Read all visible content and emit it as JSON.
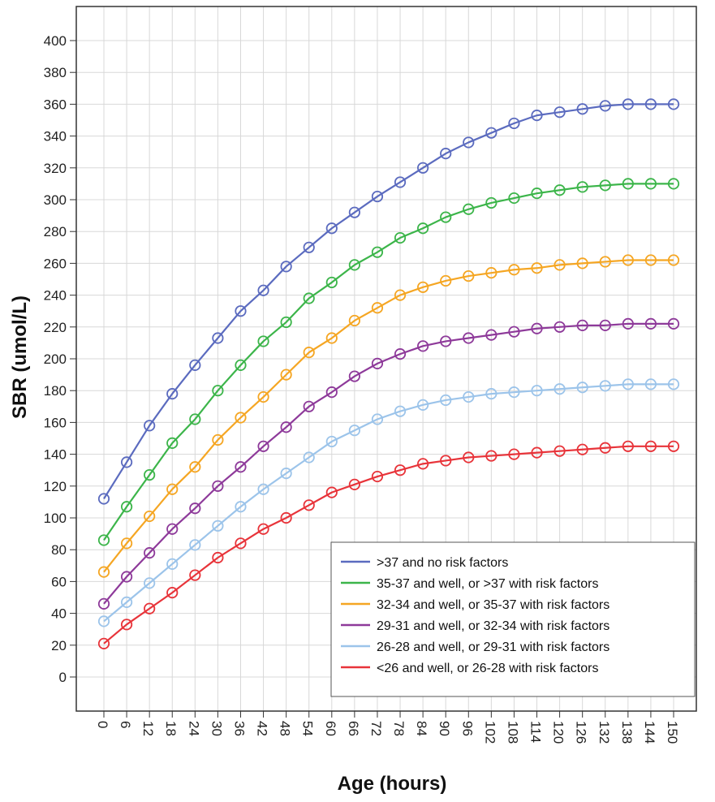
{
  "chart_data": {
    "type": "line",
    "title": "",
    "xlabel": "Age (hours)",
    "ylabel": "SBR (umol/L)",
    "x": [
      0,
      6,
      12,
      18,
      24,
      30,
      36,
      42,
      48,
      54,
      60,
      66,
      72,
      78,
      84,
      90,
      96,
      102,
      108,
      114,
      120,
      126,
      132,
      138,
      144,
      150
    ],
    "xticks": [
      "0",
      "6",
      "12",
      "18",
      "24",
      "30",
      "36",
      "42",
      "48",
      "54",
      "60",
      "66",
      "72",
      "78",
      "84",
      "90",
      "96",
      "102",
      "108",
      "114",
      "120",
      "126",
      "132",
      "138",
      "144",
      "150"
    ],
    "yticks": [
      "0",
      "20",
      "40",
      "60",
      "80",
      "100",
      "120",
      "140",
      "160",
      "180",
      "200",
      "220",
      "240",
      "260",
      "280",
      "300",
      "320",
      "340",
      "360",
      "380",
      "400"
    ],
    "ylim": [
      0,
      400
    ],
    "grid": true,
    "legend_position": "bottom-right",
    "series": [
      {
        "name": ">37 and no risk factors",
        "color": "#5b6bbf",
        "values": [
          112,
          135,
          158,
          178,
          196,
          213,
          230,
          243,
          258,
          270,
          282,
          292,
          302,
          311,
          320,
          329,
          336,
          342,
          348,
          353,
          355,
          357,
          359,
          360,
          360,
          360
        ]
      },
      {
        "name": "35-37 and well, or >37  with risk factors",
        "color": "#3cb54a",
        "values": [
          86,
          107,
          127,
          147,
          162,
          180,
          196,
          211,
          223,
          238,
          248,
          259,
          267,
          276,
          282,
          289,
          294,
          298,
          301,
          304,
          306,
          308,
          309,
          310,
          310,
          310
        ]
      },
      {
        "name": "32-34 and well, or 35-37 with risk factors",
        "color": "#f5a623",
        "values": [
          66,
          84,
          101,
          118,
          132,
          149,
          163,
          176,
          190,
          204,
          213,
          224,
          232,
          240,
          245,
          249,
          252,
          254,
          256,
          257,
          259,
          260,
          261,
          262,
          262,
          262
        ]
      },
      {
        "name": "29-31 and well, or 32-34 with risk factors",
        "color": "#8e3a9a",
        "values": [
          46,
          63,
          78,
          93,
          106,
          120,
          132,
          145,
          157,
          170,
          179,
          189,
          197,
          203,
          208,
          211,
          213,
          215,
          217,
          219,
          220,
          221,
          221,
          222,
          222,
          222
        ]
      },
      {
        "name": "26-28 and well, or 29-31 with risk factors",
        "color": "#9cc4ea",
        "values": [
          35,
          47,
          59,
          71,
          83,
          95,
          107,
          118,
          128,
          138,
          148,
          155,
          162,
          167,
          171,
          174,
          176,
          178,
          179,
          180,
          181,
          182,
          183,
          184,
          184,
          184
        ]
      },
      {
        "name": "<26 and well, or 26-28 with risk factors",
        "color": "#e8343a",
        "values": [
          21,
          33,
          43,
          53,
          64,
          75,
          84,
          93,
          100,
          108,
          116,
          121,
          126,
          130,
          134,
          136,
          138,
          139,
          140,
          141,
          142,
          143,
          144,
          145,
          145,
          145
        ]
      }
    ]
  }
}
